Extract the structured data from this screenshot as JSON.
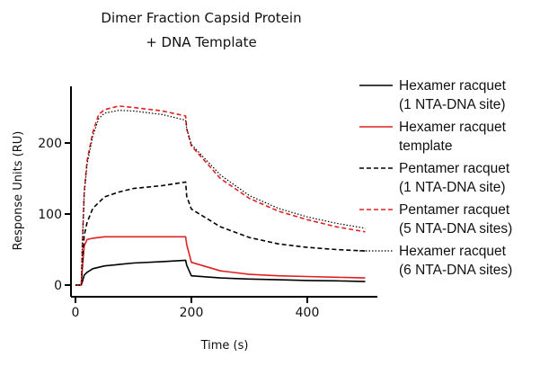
{
  "chart_data": {
    "type": "line",
    "title": [
      "Dimer Fraction Capsid Protein",
      "+ DNA Template"
    ],
    "xlabel": "Time (s)",
    "ylabel": "Response Units (RU)",
    "xlim": [
      -5,
      505
    ],
    "ylim": [
      -15,
      285
    ],
    "xticks": [
      0,
      200,
      400
    ],
    "yticks": [
      0,
      100,
      200
    ],
    "grid": false,
    "legend_position": "right",
    "series": [
      {
        "name": "Hexamer racquet (1 NTA-DNA site)",
        "color": "#000000",
        "dash": "solid",
        "x": [
          0,
          10,
          12,
          15,
          20,
          30,
          50,
          75,
          100,
          150,
          190,
          192,
          200,
          250,
          300,
          350,
          400,
          450,
          500
        ],
        "y": [
          0,
          0,
          5,
          14,
          18,
          23,
          27,
          29,
          31,
          33,
          35,
          28,
          13,
          10,
          8.5,
          7.5,
          6.5,
          6,
          5
        ]
      },
      {
        "name": "Hexamer racquet template",
        "color": "#e02020",
        "dash": "solid",
        "x": [
          0,
          10,
          12,
          15,
          20,
          30,
          50,
          75,
          100,
          150,
          190,
          192,
          200,
          250,
          300,
          350,
          400,
          450,
          500
        ],
        "y": [
          0,
          0,
          25,
          55,
          64,
          66,
          68,
          68,
          68,
          68,
          68,
          57,
          32,
          20,
          15,
          13,
          12,
          11,
          10
        ]
      },
      {
        "name": "Pentamer racquet (1 NTA-DNA site)",
        "color": "#000000",
        "dash": "dashed",
        "x": [
          0,
          10,
          12,
          15,
          20,
          30,
          50,
          75,
          100,
          150,
          190,
          192,
          200,
          250,
          300,
          350,
          400,
          450,
          500
        ],
        "y": [
          0,
          0,
          30,
          70,
          88,
          108,
          124,
          131,
          136,
          140,
          145,
          125,
          107,
          82,
          67,
          58,
          53,
          50,
          48
        ]
      },
      {
        "name": "Pentamer racquet (5 NTA-DNA sites)",
        "color": "#e02020",
        "dash": "dashed",
        "x": [
          0,
          10,
          12,
          15,
          20,
          30,
          40,
          50,
          75,
          100,
          150,
          190,
          192,
          200,
          250,
          300,
          350,
          400,
          450,
          500
        ],
        "y": [
          0,
          0,
          60,
          130,
          175,
          215,
          240,
          247,
          252,
          250,
          245,
          238,
          220,
          196,
          150,
          122,
          104,
          92,
          82,
          75
        ]
      },
      {
        "name": "Hexamer racquet (6 NTA-DNA sites)",
        "color": "#000000",
        "dash": "dotted",
        "x": [
          0,
          10,
          12,
          15,
          20,
          30,
          40,
          50,
          75,
          100,
          150,
          190,
          192,
          200,
          250,
          300,
          350,
          400,
          450,
          500
        ],
        "y": [
          0,
          0,
          58,
          128,
          170,
          210,
          234,
          242,
          246,
          245,
          240,
          232,
          220,
          198,
          155,
          126,
          108,
          96,
          87,
          80
        ]
      }
    ]
  }
}
